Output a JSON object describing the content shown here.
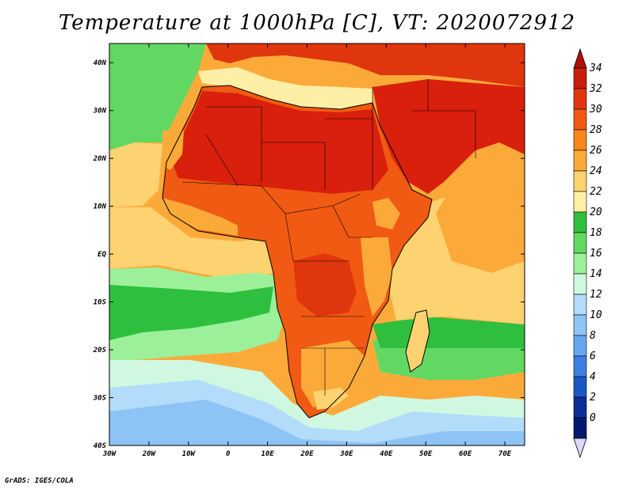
{
  "title": "Temperature at 1000hPa [C], VT: 2020072912",
  "credit": "GrADS: IGES/COLA",
  "axes": {
    "lon_ticks": [
      "30W",
      "20W",
      "10W",
      "0",
      "10E",
      "20E",
      "30E",
      "40E",
      "50E",
      "60E",
      "70E"
    ],
    "lat_ticks": [
      "40N",
      "30N",
      "20N",
      "10N",
      "EQ",
      "10S",
      "20S",
      "30S",
      "40S"
    ],
    "lon_range": [
      -30,
      75
    ],
    "lat_range": [
      -40,
      44
    ]
  },
  "colorbar": {
    "labels": [
      "34",
      "32",
      "30",
      "28",
      "26",
      "24",
      "22",
      "20",
      "18",
      "16",
      "14",
      "12",
      "10",
      "8",
      "6",
      "4",
      "2",
      "0"
    ],
    "colors": [
      "#c81e0a",
      "#e0360e",
      "#f05a12",
      "#f8861a",
      "#fbaa3a",
      "#fdd270",
      "#fdf0a6",
      "#2fbf3f",
      "#62d862",
      "#9cf09a",
      "#d0f8e0",
      "#b2dcfa",
      "#8ec4f5",
      "#66a6ee",
      "#3d7fe0",
      "#1b57c4",
      "#0c2f98",
      "#041a6e"
    ],
    "overflow_high": "#b01006",
    "overflow_low": "#dcd8fa"
  },
  "palette": {
    "ocean_warm": "#fdd270",
    "ocean_green": "#2fbf3f",
    "ocean_cold": "#8ec4f5",
    "land_hot": "#d8200c",
    "land_warm": "#f05a12"
  }
}
